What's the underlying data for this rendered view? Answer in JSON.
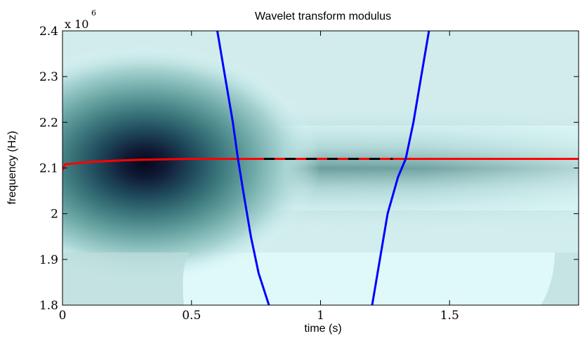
{
  "chart_data": {
    "type": "heatmap",
    "title": "Wavelet transform modulus",
    "xlabel": "time (s)",
    "ylabel": "frequency (Hz)",
    "y_exponent_label": "x 10",
    "y_exponent_power": "6",
    "xlim": [
      0,
      2.0
    ],
    "ylim": [
      1.8,
      2.4
    ],
    "x_scale_factor": 1,
    "y_scale_factor": 1000000,
    "x_ticks": [
      0,
      0.5,
      1,
      1.5
    ],
    "x_tick_labels": [
      "0",
      "0.5",
      "1",
      "1.5"
    ],
    "y_ticks": [
      1.8,
      1.9,
      2.0,
      2.1,
      2.2,
      2.3,
      2.4
    ],
    "y_tick_labels": [
      "1.8",
      "1.9",
      "2",
      "2.1",
      "2.2",
      "2.3",
      "2.4"
    ],
    "grid": false,
    "colormap": {
      "low": "#dff9f9",
      "mid": "#5d9896",
      "high": "#080818"
    },
    "heatmap_summary": {
      "peak_time_s": 0.32,
      "peak_frequency_x1e6_hz": 2.11,
      "ridge_band_center_x1e6_hz": 2.12
    },
    "series": [
      {
        "role": "ridge",
        "color": "#ff0000",
        "x": [
          0.0,
          0.01,
          0.05,
          0.1,
          0.2,
          0.3,
          0.4,
          0.5,
          0.6,
          0.7,
          0.74,
          2.0
        ],
        "y": [
          2.095,
          2.108,
          2.11,
          2.113,
          2.116,
          2.118,
          2.119,
          2.12,
          2.12,
          2.12,
          2.12,
          2.12
        ]
      },
      {
        "role": "ridge-dashed",
        "colors": [
          "#ff0000",
          "#000000"
        ],
        "x": [
          0.74,
          1.28
        ],
        "y": [
          2.12,
          2.12
        ]
      },
      {
        "role": "left-curve",
        "color": "#0000ff",
        "x": [
          0.6,
          0.63,
          0.66,
          0.68,
          0.7,
          0.73,
          0.76,
          0.8
        ],
        "y": [
          2.4,
          2.3,
          2.2,
          2.12,
          2.05,
          1.95,
          1.87,
          1.8
        ]
      },
      {
        "role": "right-curve",
        "color": "#0000ff",
        "x": [
          1.2,
          1.23,
          1.26,
          1.3,
          1.33,
          1.36,
          1.39,
          1.42
        ],
        "y": [
          1.8,
          1.9,
          2.0,
          2.08,
          2.12,
          2.2,
          2.3,
          2.4
        ]
      }
    ]
  }
}
